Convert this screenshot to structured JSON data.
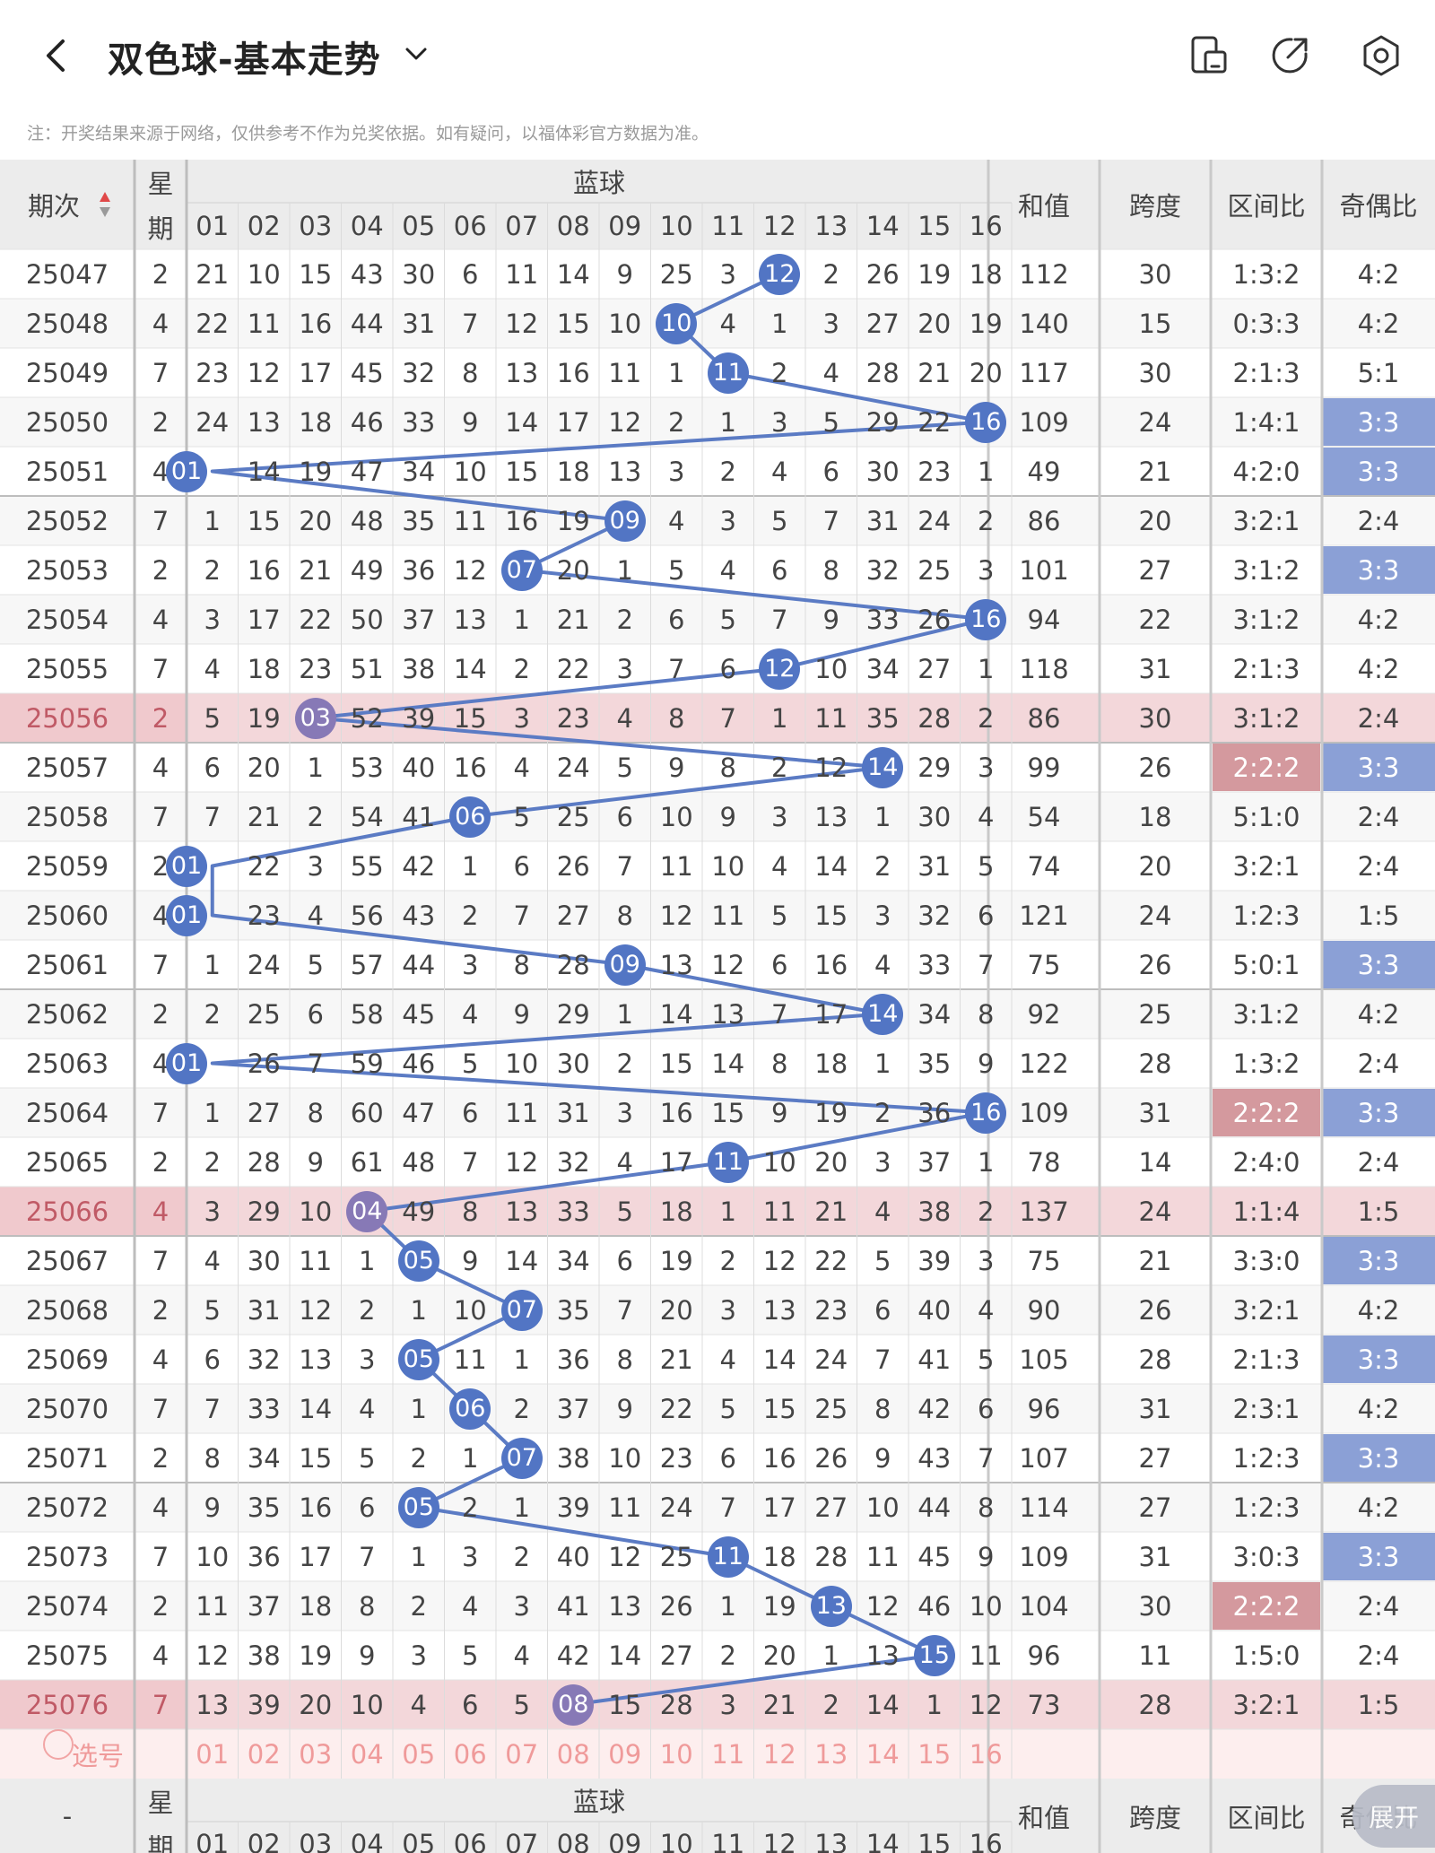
{
  "header": {
    "title": "双色球-基本走势",
    "back": "back-icon",
    "icons": [
      "devices-icon",
      "share-icon",
      "settings-icon"
    ]
  },
  "notice": "注：开奖结果来源于网络，仅供参考不作为兑奖依据。如有疑问，以福体彩官方数据为准。",
  "table": {
    "col_issue": "期次",
    "col_week_top": "星",
    "col_week_bottom": "期",
    "blue_group": "蓝球",
    "blue_numbers": [
      "01",
      "02",
      "03",
      "04",
      "05",
      "06",
      "07",
      "08",
      "09",
      "10",
      "11",
      "12",
      "13",
      "14",
      "15",
      "16"
    ],
    "col_sum": "和值",
    "col_span": "跨度",
    "col_range": "区间比",
    "col_parity": "奇偶比",
    "rows": [
      {
        "issue": "25047",
        "week": "2",
        "blue": "12",
        "misses": [
          "21",
          "10",
          "15",
          "43",
          "30",
          "6",
          "11",
          "14",
          "9",
          "25",
          "3",
          "12",
          "2",
          "26",
          "19",
          "18"
        ],
        "sum": "112",
        "span": "30",
        "range": "1:3:2",
        "parity": "4:2"
      },
      {
        "issue": "25048",
        "week": "4",
        "blue": "10",
        "misses": [
          "22",
          "11",
          "16",
          "44",
          "31",
          "7",
          "12",
          "15",
          "10",
          "10",
          "4",
          "1",
          "3",
          "27",
          "20",
          "19"
        ],
        "sum": "140",
        "span": "15",
        "range": "0:3:3",
        "parity": "4:2"
      },
      {
        "issue": "25049",
        "week": "7",
        "blue": "11",
        "misses": [
          "23",
          "12",
          "17",
          "45",
          "32",
          "8",
          "13",
          "16",
          "11",
          "1",
          "11",
          "2",
          "4",
          "28",
          "21",
          "20"
        ],
        "sum": "117",
        "span": "30",
        "range": "2:1:3",
        "parity": "5:1"
      },
      {
        "issue": "25050",
        "week": "2",
        "blue": "16",
        "misses": [
          "24",
          "13",
          "18",
          "46",
          "33",
          "9",
          "14",
          "17",
          "12",
          "2",
          "1",
          "3",
          "5",
          "29",
          "22",
          "16"
        ],
        "sum": "109",
        "span": "24",
        "range": "1:4:1",
        "parity": "3:3"
      },
      {
        "issue": "25051",
        "week": "4",
        "blue": "01",
        "misses": [
          "01",
          "14",
          "19",
          "47",
          "34",
          "10",
          "15",
          "18",
          "13",
          "3",
          "2",
          "4",
          "6",
          "30",
          "23",
          "1"
        ],
        "sum": "49",
        "span": "21",
        "range": "4:2:0",
        "parity": "3:3"
      },
      {
        "issue": "25052",
        "week": "7",
        "blue": "09",
        "misses": [
          "1",
          "15",
          "20",
          "48",
          "35",
          "11",
          "16",
          "19",
          "09",
          "4",
          "3",
          "5",
          "7",
          "31",
          "24",
          "2"
        ],
        "sum": "86",
        "span": "20",
        "range": "3:2:1",
        "parity": "2:4"
      },
      {
        "issue": "25053",
        "week": "2",
        "blue": "07",
        "misses": [
          "2",
          "16",
          "21",
          "49",
          "36",
          "12",
          "07",
          "20",
          "1",
          "5",
          "4",
          "6",
          "8",
          "32",
          "25",
          "3"
        ],
        "sum": "101",
        "span": "27",
        "range": "3:1:2",
        "parity": "3:3"
      },
      {
        "issue": "25054",
        "week": "4",
        "blue": "16",
        "misses": [
          "3",
          "17",
          "22",
          "50",
          "37",
          "13",
          "1",
          "21",
          "2",
          "6",
          "5",
          "7",
          "9",
          "33",
          "26",
          "16"
        ],
        "sum": "94",
        "span": "22",
        "range": "3:1:2",
        "parity": "4:2"
      },
      {
        "issue": "25055",
        "week": "7",
        "blue": "12",
        "misses": [
          "4",
          "18",
          "23",
          "51",
          "38",
          "14",
          "2",
          "22",
          "3",
          "7",
          "6",
          "12",
          "10",
          "34",
          "27",
          "1"
        ],
        "sum": "118",
        "span": "31",
        "range": "2:1:3",
        "parity": "4:2"
      },
      {
        "issue": "25056",
        "week": "2",
        "blue": "03",
        "misses": [
          "5",
          "19",
          "03",
          "52",
          "39",
          "15",
          "3",
          "23",
          "4",
          "8",
          "7",
          "1",
          "11",
          "35",
          "28",
          "2"
        ],
        "sum": "86",
        "span": "30",
        "range": "3:1:2",
        "parity": "2:4"
      },
      {
        "issue": "25057",
        "week": "4",
        "blue": "14",
        "misses": [
          "6",
          "20",
          "1",
          "53",
          "40",
          "16",
          "4",
          "24",
          "5",
          "9",
          "8",
          "2",
          "12",
          "14",
          "29",
          "3"
        ],
        "sum": "99",
        "span": "26",
        "range": "2:2:2",
        "parity": "3:3"
      },
      {
        "issue": "25058",
        "week": "7",
        "blue": "06",
        "misses": [
          "7",
          "21",
          "2",
          "54",
          "41",
          "06",
          "5",
          "25",
          "6",
          "10",
          "9",
          "3",
          "13",
          "1",
          "30",
          "4"
        ],
        "sum": "54",
        "span": "18",
        "range": "5:1:0",
        "parity": "2:4"
      },
      {
        "issue": "25059",
        "week": "2",
        "blue": "01",
        "misses": [
          "01",
          "22",
          "3",
          "55",
          "42",
          "1",
          "6",
          "26",
          "7",
          "11",
          "10",
          "4",
          "14",
          "2",
          "31",
          "5"
        ],
        "sum": "74",
        "span": "20",
        "range": "3:2:1",
        "parity": "2:4"
      },
      {
        "issue": "25060",
        "week": "4",
        "blue": "01",
        "misses": [
          "01",
          "23",
          "4",
          "56",
          "43",
          "2",
          "7",
          "27",
          "8",
          "12",
          "11",
          "5",
          "15",
          "3",
          "32",
          "6"
        ],
        "sum": "121",
        "span": "24",
        "range": "1:2:3",
        "parity": "1:5"
      },
      {
        "issue": "25061",
        "week": "7",
        "blue": "09",
        "misses": [
          "1",
          "24",
          "5",
          "57",
          "44",
          "3",
          "8",
          "28",
          "09",
          "13",
          "12",
          "6",
          "16",
          "4",
          "33",
          "7"
        ],
        "sum": "75",
        "span": "26",
        "range": "5:0:1",
        "parity": "3:3"
      },
      {
        "issue": "25062",
        "week": "2",
        "blue": "14",
        "misses": [
          "2",
          "25",
          "6",
          "58",
          "45",
          "4",
          "9",
          "29",
          "1",
          "14",
          "13",
          "7",
          "17",
          "14",
          "34",
          "8"
        ],
        "sum": "92",
        "span": "25",
        "range": "3:1:2",
        "parity": "4:2"
      },
      {
        "issue": "25063",
        "week": "4",
        "blue": "01",
        "misses": [
          "01",
          "26",
          "7",
          "59",
          "46",
          "5",
          "10",
          "30",
          "2",
          "15",
          "14",
          "8",
          "18",
          "1",
          "35",
          "9"
        ],
        "sum": "122",
        "span": "28",
        "range": "1:3:2",
        "parity": "2:4"
      },
      {
        "issue": "25064",
        "week": "7",
        "blue": "16",
        "misses": [
          "1",
          "27",
          "8",
          "60",
          "47",
          "6",
          "11",
          "31",
          "3",
          "16",
          "15",
          "9",
          "19",
          "2",
          "36",
          "16"
        ],
        "sum": "109",
        "span": "31",
        "range": "2:2:2",
        "parity": "3:3"
      },
      {
        "issue": "25065",
        "week": "2",
        "blue": "11",
        "misses": [
          "2",
          "28",
          "9",
          "61",
          "48",
          "7",
          "12",
          "32",
          "4",
          "17",
          "11",
          "10",
          "20",
          "3",
          "37",
          "1"
        ],
        "sum": "78",
        "span": "14",
        "range": "2:4:0",
        "parity": "2:4"
      },
      {
        "issue": "25066",
        "week": "4",
        "blue": "04",
        "misses": [
          "3",
          "29",
          "10",
          "04",
          "49",
          "8",
          "13",
          "33",
          "5",
          "18",
          "1",
          "11",
          "21",
          "4",
          "38",
          "2"
        ],
        "sum": "137",
        "span": "24",
        "range": "1:1:4",
        "parity": "1:5"
      },
      {
        "issue": "25067",
        "week": "7",
        "blue": "05",
        "misses": [
          "4",
          "30",
          "11",
          "1",
          "05",
          "9",
          "14",
          "34",
          "6",
          "19",
          "2",
          "12",
          "22",
          "5",
          "39",
          "3"
        ],
        "sum": "75",
        "span": "21",
        "range": "3:3:0",
        "parity": "3:3"
      },
      {
        "issue": "25068",
        "week": "2",
        "blue": "07",
        "misses": [
          "5",
          "31",
          "12",
          "2",
          "1",
          "10",
          "07",
          "35",
          "7",
          "20",
          "3",
          "13",
          "23",
          "6",
          "40",
          "4"
        ],
        "sum": "90",
        "span": "26",
        "range": "3:2:1",
        "parity": "4:2"
      },
      {
        "issue": "25069",
        "week": "4",
        "blue": "05",
        "misses": [
          "6",
          "32",
          "13",
          "3",
          "05",
          "11",
          "1",
          "36",
          "8",
          "21",
          "4",
          "14",
          "24",
          "7",
          "41",
          "5"
        ],
        "sum": "105",
        "span": "28",
        "range": "2:1:3",
        "parity": "3:3"
      },
      {
        "issue": "25070",
        "week": "7",
        "blue": "06",
        "misses": [
          "7",
          "33",
          "14",
          "4",
          "1",
          "06",
          "2",
          "37",
          "9",
          "22",
          "5",
          "15",
          "25",
          "8",
          "42",
          "6"
        ],
        "sum": "96",
        "span": "31",
        "range": "2:3:1",
        "parity": "4:2"
      },
      {
        "issue": "25071",
        "week": "2",
        "blue": "07",
        "misses": [
          "8",
          "34",
          "15",
          "5",
          "2",
          "1",
          "07",
          "38",
          "10",
          "23",
          "6",
          "16",
          "26",
          "9",
          "43",
          "7"
        ],
        "sum": "107",
        "span": "27",
        "range": "1:2:3",
        "parity": "3:3"
      },
      {
        "issue": "25072",
        "week": "4",
        "blue": "05",
        "misses": [
          "9",
          "35",
          "16",
          "6",
          "05",
          "2",
          "1",
          "39",
          "11",
          "24",
          "7",
          "17",
          "27",
          "10",
          "44",
          "8"
        ],
        "sum": "114",
        "span": "27",
        "range": "1:2:3",
        "parity": "4:2"
      },
      {
        "issue": "25073",
        "week": "7",
        "blue": "11",
        "misses": [
          "10",
          "36",
          "17",
          "7",
          "1",
          "3",
          "2",
          "40",
          "12",
          "25",
          "11",
          "18",
          "28",
          "11",
          "45",
          "9"
        ],
        "sum": "109",
        "span": "31",
        "range": "3:0:3",
        "parity": "3:3"
      },
      {
        "issue": "25074",
        "week": "2",
        "blue": "13",
        "misses": [
          "11",
          "37",
          "18",
          "8",
          "2",
          "4",
          "3",
          "41",
          "13",
          "26",
          "1",
          "19",
          "13",
          "12",
          "46",
          "10"
        ],
        "sum": "104",
        "span": "30",
        "range": "2:2:2",
        "parity": "2:4"
      },
      {
        "issue": "25075",
        "week": "4",
        "blue": "15",
        "misses": [
          "12",
          "38",
          "19",
          "9",
          "3",
          "5",
          "4",
          "42",
          "14",
          "27",
          "2",
          "20",
          "1",
          "13",
          "15",
          "11"
        ],
        "sum": "96",
        "span": "11",
        "range": "1:5:0",
        "parity": "2:4"
      },
      {
        "issue": "25076",
        "week": "7",
        "blue": "08",
        "misses": [
          "13",
          "39",
          "20",
          "10",
          "4",
          "6",
          "5",
          "08",
          "15",
          "28",
          "3",
          "21",
          "2",
          "14",
          "1",
          "12"
        ],
        "sum": "73",
        "span": "28",
        "range": "3:2:1",
        "parity": "1:5"
      }
    ],
    "pink_rows": [
      "25056",
      "25066",
      "25076"
    ],
    "purple_balls": [
      "25056",
      "25066",
      "25076"
    ],
    "highlight_parity": "3:3",
    "highlight_range": "2:2:2",
    "select_label": "选号",
    "footer_issue": "-",
    "expand_label": "展开"
  },
  "colors": {
    "blue_ball": "#5275c4",
    "purple_ball": "#8779b6",
    "trend_line": "#5b7bc4",
    "pink_row": "#f3d7da",
    "parity_highlight": "#8ba0d6",
    "range_highlight": "#d4999e",
    "select_text": "#ef9a9a"
  }
}
